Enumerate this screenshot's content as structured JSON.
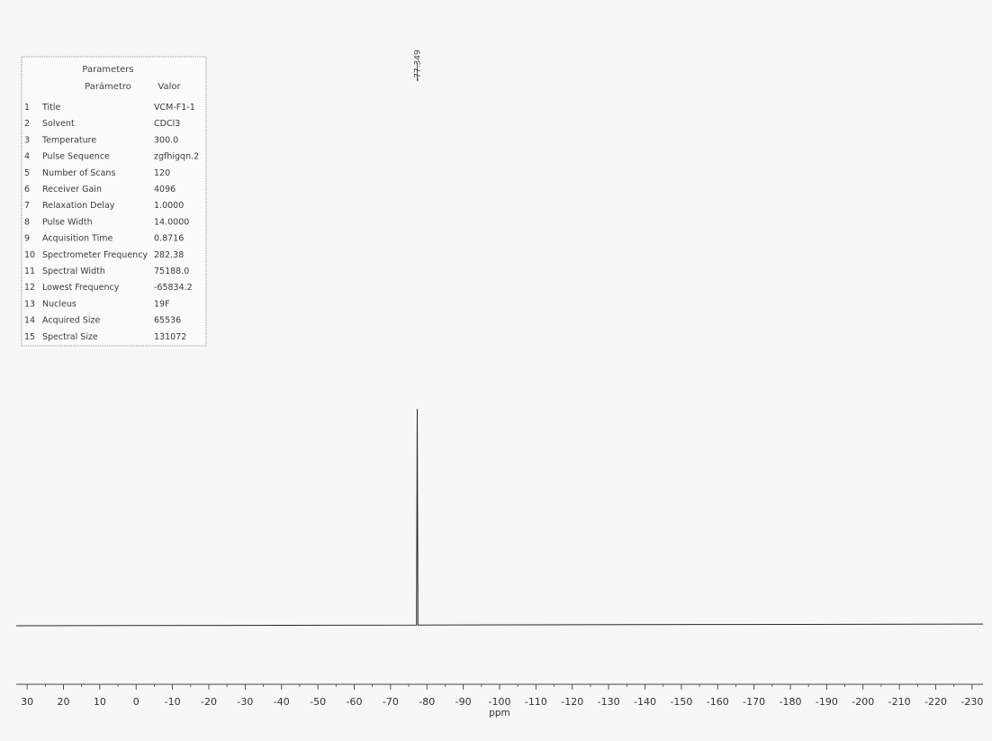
{
  "parameters_table": {
    "title": "Parameters",
    "columns": [
      "Parámetro",
      "Valor"
    ],
    "rows": [
      {
        "num": "1",
        "name": "Title",
        "value": "VCM-F1-1"
      },
      {
        "num": "2",
        "name": "Solvent",
        "value": "CDCl3"
      },
      {
        "num": "3",
        "name": "Temperature",
        "value": "300.0"
      },
      {
        "num": "4",
        "name": "Pulse Sequence",
        "value": "zgfhigqn.2"
      },
      {
        "num": "5",
        "name": "Number of Scans",
        "value": "120"
      },
      {
        "num": "6",
        "name": "Receiver Gain",
        "value": "4096"
      },
      {
        "num": "7",
        "name": "Relaxation Delay",
        "value": "1.0000"
      },
      {
        "num": "8",
        "name": "Pulse Width",
        "value": "14.0000"
      },
      {
        "num": "9",
        "name": "Acquisition Time",
        "value": "0.8716"
      },
      {
        "num": "10",
        "name": "Spectrometer Frequency",
        "value": "282.38"
      },
      {
        "num": "11",
        "name": "Spectral Width",
        "value": "75188.0"
      },
      {
        "num": "12",
        "name": "Lowest Frequency",
        "value": "-65834.2"
      },
      {
        "num": "13",
        "name": "Nucleus",
        "value": "19F"
      },
      {
        "num": "14",
        "name": "Acquired Size",
        "value": "65536"
      },
      {
        "num": "15",
        "name": "Spectral Size",
        "value": "131072"
      }
    ]
  },
  "chart_data": {
    "type": "line",
    "xlabel": "ppm",
    "ylabel": "",
    "x_reversed": true,
    "xlim": [
      33,
      -233
    ],
    "ticks": [
      30,
      20,
      10,
      0,
      -10,
      -20,
      -30,
      -40,
      -50,
      -60,
      -70,
      -80,
      -90,
      -100,
      -110,
      -120,
      -130,
      -140,
      -150,
      -160,
      -170,
      -180,
      -190,
      -200,
      -210,
      -220,
      -230
    ],
    "tick_labels": [
      "30",
      "20",
      "10",
      "0",
      "-10",
      "-20",
      "-30",
      "-40",
      "-50",
      "-60",
      "-70",
      "-80",
      "-90",
      "-100",
      "-110",
      "-120",
      "-130",
      "-140",
      "-150",
      "-160",
      "-170",
      "-180",
      "-190",
      "-200",
      "-210",
      "-220",
      "-230"
    ],
    "minor_tick_step": 5,
    "peaks": [
      {
        "ppm": -77.349,
        "label": "-77.349",
        "relative_intensity": 1.0
      }
    ],
    "baseline_drift": {
      "left": 0,
      "right": 0.008
    },
    "grid": false,
    "legend": "none"
  },
  "colors": {
    "background": "#f7f7f5",
    "spectrum": "#2b2b2b",
    "axis": "#444444",
    "table_border": "#888888"
  }
}
